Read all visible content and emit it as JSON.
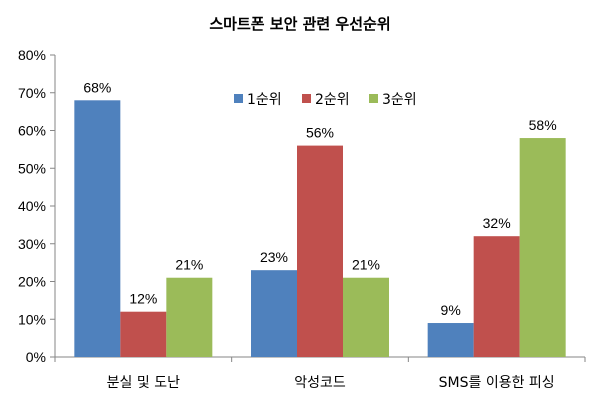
{
  "chart_data": {
    "type": "bar",
    "title": "스마트폰 보안 관련 우선순위",
    "categories": [
      "분실 및 도난",
      "악성코드",
      "SMS를 이용한 피싱"
    ],
    "series": [
      {
        "name": "1순위",
        "values": [
          68,
          23,
          9
        ],
        "color": "#4F81BD",
        "labels": [
          "68%",
          "23%",
          "9%"
        ]
      },
      {
        "name": "2순위",
        "values": [
          12,
          56,
          32
        ],
        "color": "#C0504D",
        "labels": [
          "12%",
          "56%",
          "32%"
        ]
      },
      {
        "name": "3순위",
        "values": [
          21,
          21,
          58
        ],
        "color": "#9BBB59",
        "labels": [
          "21%",
          "21%",
          "58%"
        ]
      }
    ],
    "yticks": [
      "0%",
      "10%",
      "20%",
      "30%",
      "40%",
      "50%",
      "60%",
      "70%",
      "80%"
    ],
    "ylim": [
      0,
      80
    ],
    "grid": false,
    "legend_position": "top-center"
  }
}
